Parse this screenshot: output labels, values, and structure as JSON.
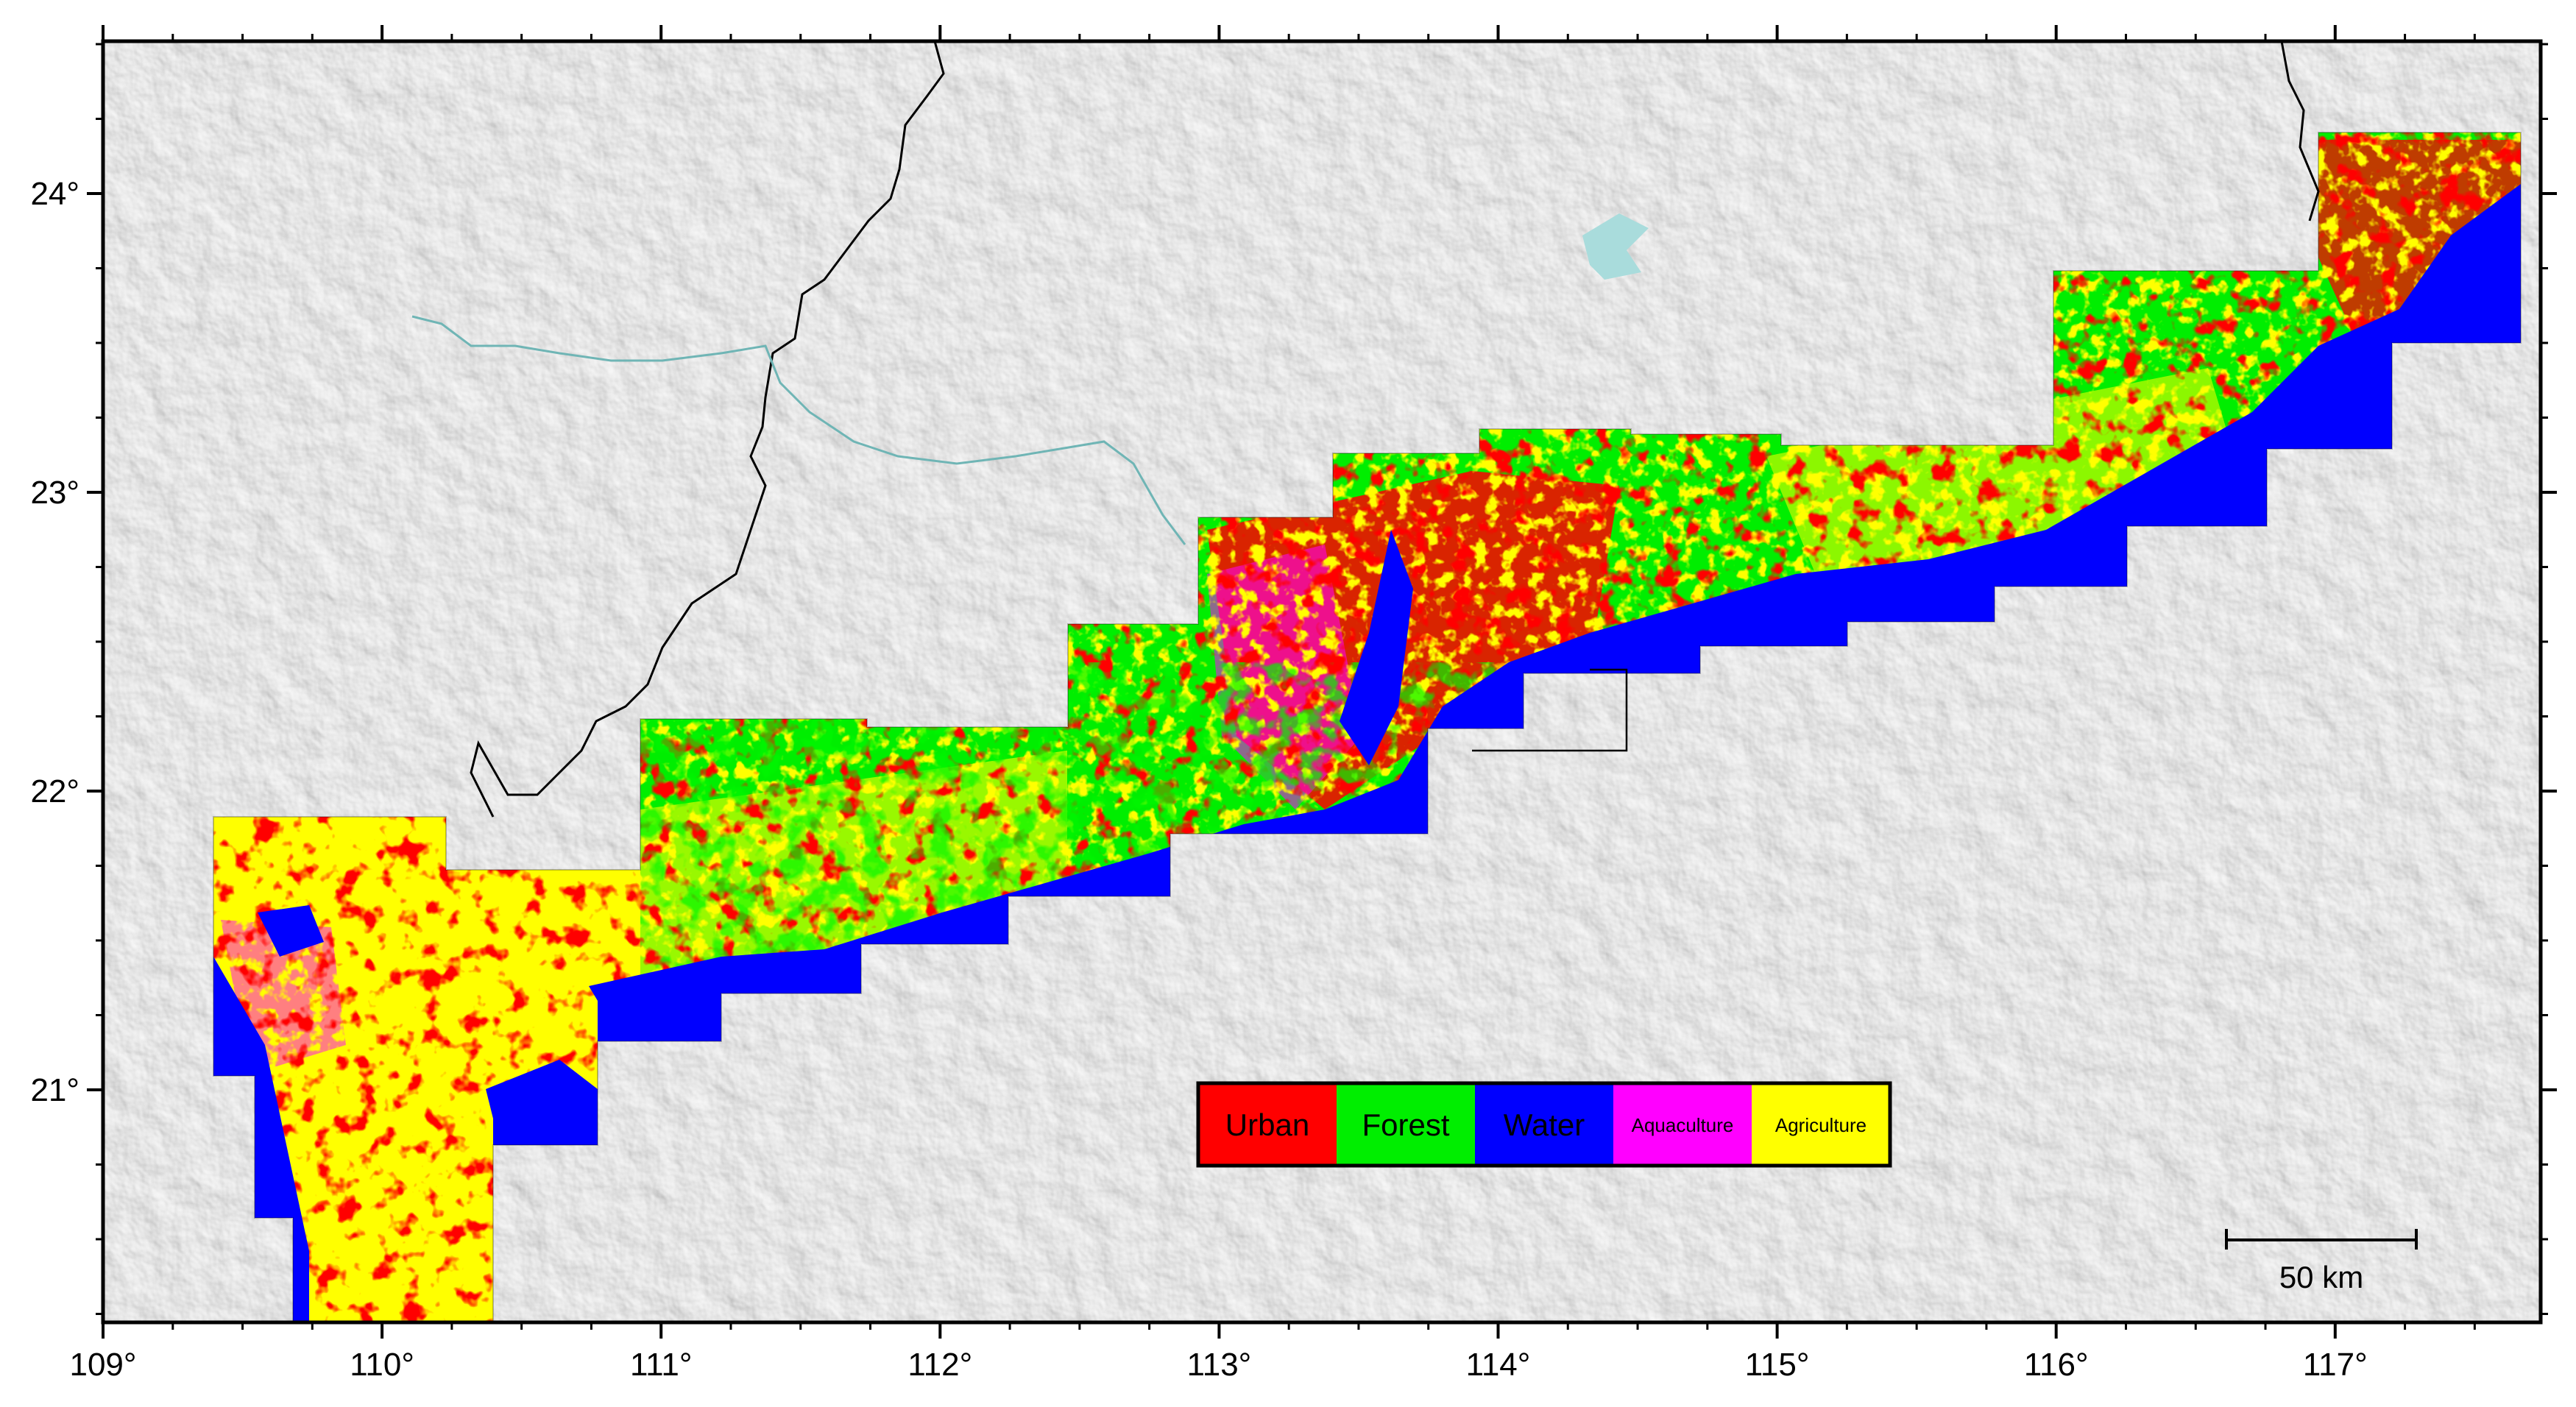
{
  "map": {
    "axes": {
      "x_ticks": [
        "109°",
        "110°",
        "111°",
        "112°",
        "113°",
        "114°",
        "115°",
        "116°",
        "117°"
      ],
      "y_ticks": [
        "24°",
        "23°",
        "22°",
        "21°"
      ]
    },
    "legend": {
      "items": [
        {
          "label": "Urban",
          "color": "#ff0000"
        },
        {
          "label": "Forest",
          "color": "#00ee00"
        },
        {
          "label": "Water",
          "color": "#0000ff"
        },
        {
          "label": "Aquaculture",
          "color": "#ff00ff"
        },
        {
          "label": "Agriculture",
          "color": "#ffff00"
        }
      ]
    },
    "scale_bar": {
      "label": "50 km"
    },
    "colors": {
      "land": "#e3e3e3",
      "sea": "#c4ecec",
      "urban": "#ff0000",
      "forest": "#00ee00",
      "water": "#0000ff",
      "aquaculture": "#ff00ff",
      "agriculture": "#ffff00",
      "border": "#000000"
    }
  }
}
